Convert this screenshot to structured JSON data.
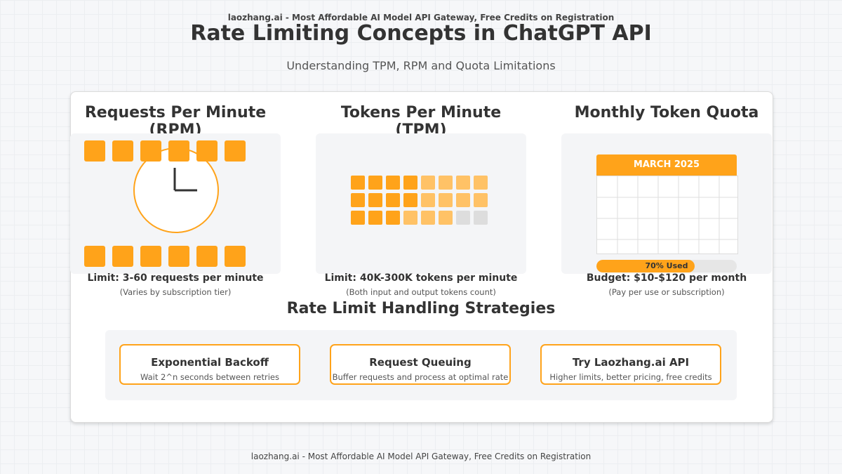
{
  "header": {
    "banner": "laozhang.ai - Most Affordable AI Model API Gateway, Free Credits on Registration",
    "title": "Rate Limiting Concepts in ChatGPT API",
    "subtitle": "Understanding TPM, RPM and Quota Limitations"
  },
  "rpm": {
    "title": "Requests Per Minute (RPM)",
    "limit": "Limit: 3-60 requests per minute",
    "note": "(Varies by subscription tier)"
  },
  "tpm": {
    "title": "Tokens Per Minute (TPM)",
    "limit": "Limit: 40K-300K tokens per minute",
    "note": "(Both input and output tokens count)"
  },
  "quota": {
    "title": "Monthly Token Quota",
    "calendar_month": "MARCH 2025",
    "usage_label": "70% Used",
    "usage_fraction": 0.7,
    "limit": "Budget: $10-$120 per month",
    "note": "(Pay per use or subscription)"
  },
  "strategies": {
    "title": "Rate Limit Handling Strategies",
    "items": [
      {
        "title": "Exponential Backoff",
        "desc": "Wait 2^n seconds between retries"
      },
      {
        "title": "Request Queuing",
        "desc": "Buffer requests and process at optimal rate"
      },
      {
        "title": "Try Laozhang.ai API",
        "desc": "Higher limits, better pricing, free credits"
      }
    ]
  },
  "footer": {
    "banner": "laozhang.ai - Most Affordable AI Model API Gateway, Free Credits on Registration"
  },
  "colors": {
    "accent": "#ffa31a",
    "accent_light": "#ffc266",
    "empty": "#dddddd"
  }
}
